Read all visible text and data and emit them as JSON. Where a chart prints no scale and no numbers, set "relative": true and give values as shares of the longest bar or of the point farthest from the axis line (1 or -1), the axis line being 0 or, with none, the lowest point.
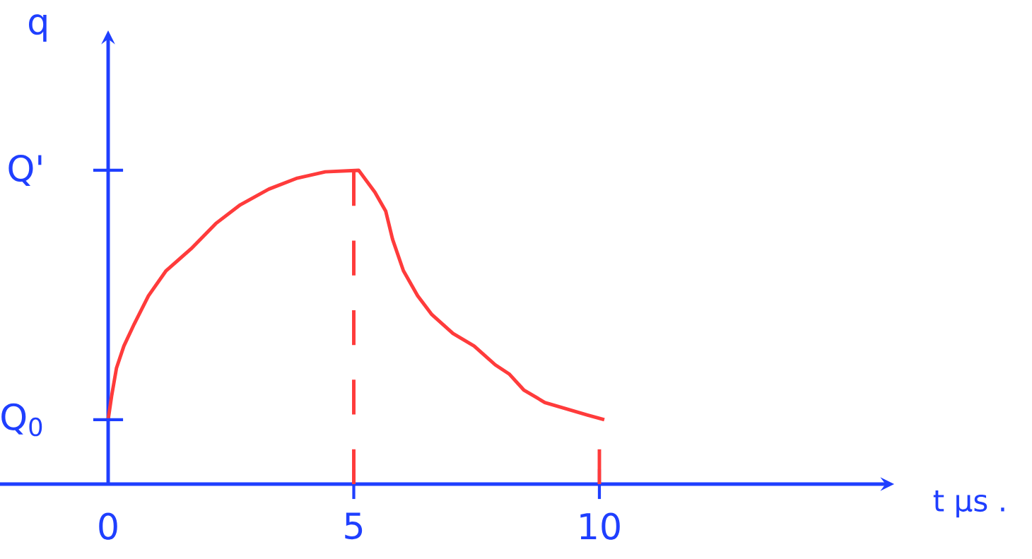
{
  "chart_data": {
    "type": "line",
    "relative": true,
    "xlabel": "t μs .",
    "ylabel": "q",
    "x": [
      0,
      0.07,
      0.17,
      0.32,
      0.53,
      0.82,
      1.18,
      1.69,
      2.19,
      2.69,
      3.27,
      3.85,
      4.42,
      5.1,
      5.43,
      5.65,
      5.79,
      6.01,
      6.3,
      6.59,
      7.02,
      7.45,
      7.88,
      8.17,
      8.46,
      8.89,
      9.32,
      9.76,
      10.1
    ],
    "series": [
      {
        "color": "#ff3b3b",
        "values": [
          0.205,
          0.28,
          0.37,
          0.44,
          0.51,
          0.6,
          0.68,
          0.75,
          0.83,
          0.89,
          0.94,
          0.975,
          0.995,
          1.0,
          0.93,
          0.87,
          0.78,
          0.68,
          0.6,
          0.54,
          0.48,
          0.44,
          0.38,
          0.35,
          0.3,
          0.26,
          0.24,
          0.22,
          0.205
        ]
      }
    ],
    "xlim": [
      0,
      15.9
    ],
    "xticks": [
      0,
      5,
      10
    ],
    "ref_lines": [
      {
        "axis": "x",
        "value": 5,
        "color": "#ff3b3b",
        "line_style": "dashed"
      },
      {
        "axis": "x",
        "value": 10,
        "color": "#ff3b3b",
        "line_style": "dashed"
      }
    ],
    "annotations": [
      {
        "text": "Q$_{0}$",
        "x": 0,
        "y": 0.205
      },
      "Q'"
    ],
    "grid": false,
    "marker": "none",
    "line_style": "solid"
  }
}
